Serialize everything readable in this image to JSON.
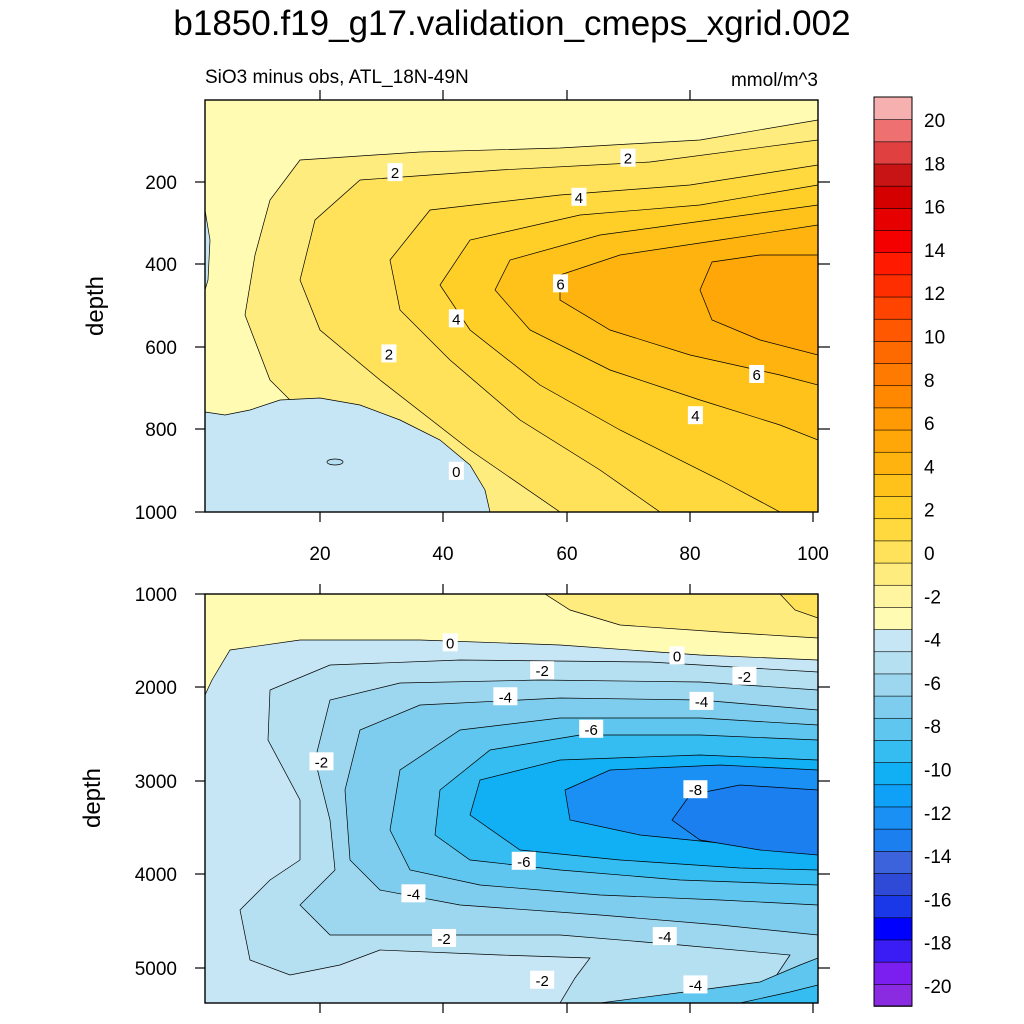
{
  "title": "b1850.f19_g17.validation_cmeps_xgrid.002",
  "colors": {
    "levels": [
      -20,
      -18,
      -16,
      -14,
      -12,
      -10,
      -8,
      -6,
      -4,
      -2,
      0,
      2,
      4,
      6,
      8,
      10,
      12,
      14,
      16,
      18,
      20
    ],
    "palette": [
      "#8a2be2",
      "#7a1ff0",
      "#3a1cf5",
      "#0000ff",
      "#1a37e8",
      "#2f4ad6",
      "#3d63dc",
      "#1c7ff0",
      "#1a8ff4",
      "#0fa0f8",
      "#11b0f5",
      "#35bcf0",
      "#5fc7ef",
      "#7fcdee",
      "#9dd6ef",
      "#b5e0f2",
      "#c7e6f5",
      "#fffbb3",
      "#fff4a0",
      "#ffec7e",
      "#ffe25a",
      "#ffd93e",
      "#ffcf28",
      "#ffc21a",
      "#ffb30f",
      "#ffa708",
      "#ff9a05",
      "#ff8800",
      "#ff7a00",
      "#ff6a00",
      "#ff5800",
      "#ff4400",
      "#ff2e00",
      "#ff1a00",
      "#f50000",
      "#e60000",
      "#d40000",
      "#c81414",
      "#e04040",
      "#ef7070",
      "#f7b0b0"
    ]
  },
  "colorbar_labels": [
    "20",
    "18",
    "16",
    "14",
    "12",
    "10",
    "8",
    "6",
    "4",
    "2",
    "0",
    "-2",
    "-4",
    "-6",
    "-8",
    "-10",
    "-12",
    "-14",
    "-16",
    "-18",
    "-20"
  ],
  "chart_data": [
    {
      "type": "contour",
      "panel": "top",
      "subtitle_left": "SiO3 minus obs, ATL_18N-49N",
      "subtitle_right": "mmol/m^3",
      "ylabel": "depth",
      "xlim": [
        0,
        100
      ],
      "ylim": [
        1000,
        0
      ],
      "xticks": [
        "20",
        "40",
        "60",
        "80",
        "100"
      ],
      "yticks": [
        "200",
        "400",
        "600",
        "800",
        "1000"
      ],
      "contour_labels": [
        {
          "text": "2",
          "x": 31,
          "y": 175
        },
        {
          "text": "2",
          "x": 69,
          "y": 140
        },
        {
          "text": "4",
          "x": 61,
          "y": 235
        },
        {
          "text": "6",
          "x": 58,
          "y": 445
        },
        {
          "text": "4",
          "x": 41,
          "y": 530
        },
        {
          "text": "2",
          "x": 30,
          "y": 615
        },
        {
          "text": "6",
          "x": 90,
          "y": 665
        },
        {
          "text": "4",
          "x": 80,
          "y": 765
        },
        {
          "text": "0",
          "x": 41,
          "y": 900
        }
      ]
    },
    {
      "type": "contour",
      "panel": "bottom",
      "ylabel": "depth",
      "xlim": [
        0,
        100
      ],
      "ylim": [
        5400,
        1000
      ],
      "yticks": [
        "1000",
        "2000",
        "3000",
        "4000",
        "5000"
      ],
      "contour_labels": [
        {
          "text": "0",
          "x": 40,
          "y": 1520
        },
        {
          "text": "0",
          "x": 77,
          "y": 1660
        },
        {
          "text": "-2",
          "x": 55,
          "y": 1820
        },
        {
          "text": "-2",
          "x": 88,
          "y": 1880
        },
        {
          "text": "-4",
          "x": 49,
          "y": 2100
        },
        {
          "text": "-4",
          "x": 81,
          "y": 2150
        },
        {
          "text": "-6",
          "x": 63,
          "y": 2450
        },
        {
          "text": "-2",
          "x": 19,
          "y": 2800
        },
        {
          "text": "-8",
          "x": 80,
          "y": 3100
        },
        {
          "text": "-6",
          "x": 52,
          "y": 3870
        },
        {
          "text": "-4",
          "x": 34,
          "y": 4220
        },
        {
          "text": "-2",
          "x": 39,
          "y": 4700
        },
        {
          "text": "-4",
          "x": 75,
          "y": 4680
        },
        {
          "text": "-2",
          "x": 55,
          "y": 5150
        },
        {
          "text": "-4",
          "x": 80,
          "y": 5200
        }
      ]
    }
  ]
}
